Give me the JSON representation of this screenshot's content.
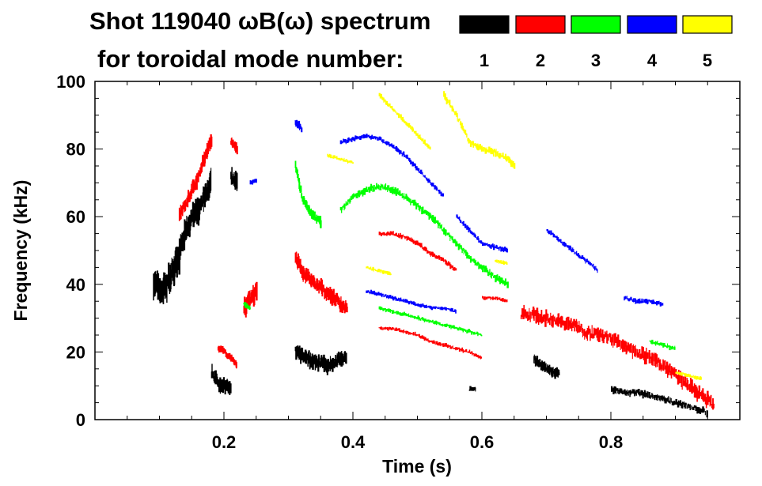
{
  "chart_data": {
    "type": "scatter",
    "title_line1": "Shot 119040 ωB(ω) spectrum",
    "title_line2": "for toroidal mode number:",
    "xlabel": "Time (s)",
    "ylabel": "Frequency (kHz)",
    "xlim": [
      0.0,
      1.0
    ],
    "ylim": [
      0,
      100
    ],
    "x_ticks": [
      0.2,
      0.4,
      0.6,
      0.8
    ],
    "x_tick_labels": [
      "0.2",
      "0.4",
      "0.6",
      "0.8"
    ],
    "y_ticks": [
      0,
      20,
      40,
      60,
      80,
      100
    ],
    "y_tick_labels": [
      "0",
      "20",
      "40",
      "60",
      "80",
      "100"
    ],
    "legend": [
      {
        "label": "1",
        "color": "#000000"
      },
      {
        "label": "2",
        "color": "#ff0000"
      },
      {
        "label": "3",
        "color": "#00ff00"
      },
      {
        "label": "4",
        "color": "#0000ff"
      },
      {
        "label": "5",
        "color": "#ffff00"
      }
    ],
    "series": [
      {
        "name": "n=1",
        "color": "#000000",
        "segments": [
          {
            "t": [
              0.09,
              0.1,
              0.11,
              0.12,
              0.13
            ],
            "f": [
              41,
              38,
              40,
              44,
              48
            ],
            "spread": 6
          },
          {
            "t": [
              0.13,
              0.14,
              0.15,
              0.16,
              0.17,
              0.18
            ],
            "f": [
              50,
              56,
              60,
              62,
              66,
              70
            ],
            "spread": 5
          },
          {
            "t": [
              0.18,
              0.19,
              0.2,
              0.21
            ],
            "f": [
              14,
              11,
              10,
              9
            ],
            "spread": 3
          },
          {
            "t": [
              0.21,
              0.22
            ],
            "f": [
              72,
              70
            ],
            "spread": 4
          },
          {
            "t": [
              0.31,
              0.32,
              0.33,
              0.34,
              0.35,
              0.36,
              0.37,
              0.38,
              0.39
            ],
            "f": [
              20,
              19,
              18,
              17,
              17,
              16,
              17,
              18,
              18
            ],
            "spread": 3
          },
          {
            "t": [
              0.58,
              0.59
            ],
            "f": [
              9,
              9
            ],
            "spread": 1
          },
          {
            "t": [
              0.68,
              0.69,
              0.7,
              0.71,
              0.72
            ],
            "f": [
              18,
              16,
              15,
              14,
              14
            ],
            "spread": 2
          },
          {
            "t": [
              0.8,
              0.82,
              0.84,
              0.86,
              0.88,
              0.9,
              0.92,
              0.95
            ],
            "f": [
              9,
              8,
              8,
              7,
              6,
              5,
              4,
              2
            ],
            "spread": 1.5
          }
        ]
      },
      {
        "name": "n=2",
        "color": "#ff0000",
        "segments": [
          {
            "t": [
              0.13,
              0.14,
              0.15,
              0.16,
              0.17,
              0.18
            ],
            "f": [
              60,
              64,
              68,
              72,
              78,
              83
            ],
            "spread": 3
          },
          {
            "t": [
              0.21,
              0.22
            ],
            "f": [
              82,
              80
            ],
            "spread": 2
          },
          {
            "t": [
              0.19,
              0.2,
              0.21,
              0.22
            ],
            "f": [
              21,
              20,
              18,
              16
            ],
            "spread": 1.5
          },
          {
            "t": [
              0.23,
              0.24,
              0.25
            ],
            "f": [
              33,
              36,
              38
            ],
            "spread": 4
          },
          {
            "t": [
              0.31,
              0.32,
              0.33,
              0.34,
              0.35,
              0.36,
              0.37,
              0.38,
              0.39
            ],
            "f": [
              48,
              44,
              42,
              40,
              39,
              37,
              36,
              34,
              33
            ],
            "spread": 3
          },
          {
            "t": [
              0.44,
              0.46,
              0.48,
              0.5,
              0.52,
              0.54,
              0.56
            ],
            "f": [
              55,
              55,
              54,
              52,
              49,
              47,
              44
            ],
            "spread": 1
          },
          {
            "t": [
              0.44,
              0.46,
              0.48,
              0.5,
              0.52,
              0.54,
              0.56,
              0.58,
              0.6
            ],
            "f": [
              27,
              27,
              26,
              25,
              23,
              22,
              21,
              20,
              18
            ],
            "spread": 0.8
          },
          {
            "t": [
              0.6,
              0.62,
              0.64
            ],
            "f": [
              36,
              36,
              35
            ],
            "spread": 0.8
          },
          {
            "t": [
              0.66,
              0.68,
              0.7,
              0.72,
              0.74,
              0.76,
              0.78,
              0.8,
              0.82,
              0.84,
              0.86,
              0.88,
              0.9,
              0.92,
              0.94,
              0.96
            ],
            "f": [
              31,
              31,
              30,
              29,
              28,
              26,
              25,
              24,
              22,
              20,
              18,
              16,
              13,
              10,
              7,
              4
            ],
            "spread": 3
          }
        ]
      },
      {
        "name": "n=3",
        "color": "#00ff00",
        "segments": [
          {
            "t": [
              0.31,
              0.32,
              0.33,
              0.34,
              0.35
            ],
            "f": [
              75,
              66,
              62,
              60,
              58
            ],
            "spread": 2
          },
          {
            "t": [
              0.38,
              0.4,
              0.42,
              0.44,
              0.46,
              0.48,
              0.5,
              0.52,
              0.54,
              0.56,
              0.58,
              0.6,
              0.62,
              0.64
            ],
            "f": [
              62,
              66,
              68,
              69,
              68,
              66,
              63,
              60,
              56,
              52,
              48,
              45,
              42,
              40
            ],
            "spread": 1.5
          },
          {
            "t": [
              0.44,
              0.46,
              0.48,
              0.5,
              0.52,
              0.54,
              0.56,
              0.58,
              0.6
            ],
            "f": [
              33,
              32,
              31,
              30,
              29,
              28,
              27,
              26,
              25
            ],
            "spread": 0.8
          },
          {
            "t": [
              0.23,
              0.24
            ],
            "f": [
              34,
              33
            ],
            "spread": 1
          },
          {
            "t": [
              0.86,
              0.88,
              0.9
            ],
            "f": [
              23,
              22,
              21
            ],
            "spread": 1
          }
        ]
      },
      {
        "name": "n=4",
        "color": "#0000ff",
        "segments": [
          {
            "t": [
              0.31,
              0.32
            ],
            "f": [
              88,
              86
            ],
            "spread": 2
          },
          {
            "t": [
              0.38,
              0.4,
              0.42,
              0.44,
              0.46,
              0.48,
              0.5,
              0.52,
              0.54
            ],
            "f": [
              82,
              83,
              84,
              83,
              81,
              78,
              74,
              70,
              66
            ],
            "spread": 1
          },
          {
            "t": [
              0.56,
              0.58,
              0.6,
              0.62,
              0.64
            ],
            "f": [
              60,
              56,
              52,
              51,
              50
            ],
            "spread": 1
          },
          {
            "t": [
              0.42,
              0.44,
              0.46,
              0.48,
              0.5,
              0.52,
              0.54,
              0.56
            ],
            "f": [
              38,
              37,
              36,
              35,
              34,
              33,
              33,
              32
            ],
            "spread": 0.8
          },
          {
            "t": [
              0.7,
              0.72,
              0.74,
              0.76,
              0.78
            ],
            "f": [
              56,
              53,
              50,
              47,
              44
            ],
            "spread": 1
          },
          {
            "t": [
              0.82,
              0.84,
              0.86,
              0.88
            ],
            "f": [
              36,
              35,
              35,
              34
            ],
            "spread": 1
          },
          {
            "t": [
              0.24,
              0.25
            ],
            "f": [
              70,
              71
            ],
            "spread": 1
          }
        ]
      },
      {
        "name": "n=5",
        "color": "#ffff00",
        "segments": [
          {
            "t": [
              0.44,
              0.46,
              0.48,
              0.5,
              0.52
            ],
            "f": [
              96,
              92,
              88,
              84,
              80
            ],
            "spread": 1
          },
          {
            "t": [
              0.54,
              0.56,
              0.58,
              0.6,
              0.62,
              0.64,
              0.65
            ],
            "f": [
              96,
              90,
              82,
              80,
              79,
              77,
              75
            ],
            "spread": 1.5
          },
          {
            "t": [
              0.36,
              0.38,
              0.4
            ],
            "f": [
              78,
              77,
              76
            ],
            "spread": 0.8
          },
          {
            "t": [
              0.42,
              0.44,
              0.46
            ],
            "f": [
              45,
              44,
              43
            ],
            "spread": 0.8
          },
          {
            "t": [
              0.62,
              0.64
            ],
            "f": [
              47,
              46
            ],
            "spread": 0.8
          },
          {
            "t": [
              0.9,
              0.92,
              0.94
            ],
            "f": [
              14,
              13,
              12
            ],
            "spread": 0.8
          }
        ]
      }
    ]
  }
}
